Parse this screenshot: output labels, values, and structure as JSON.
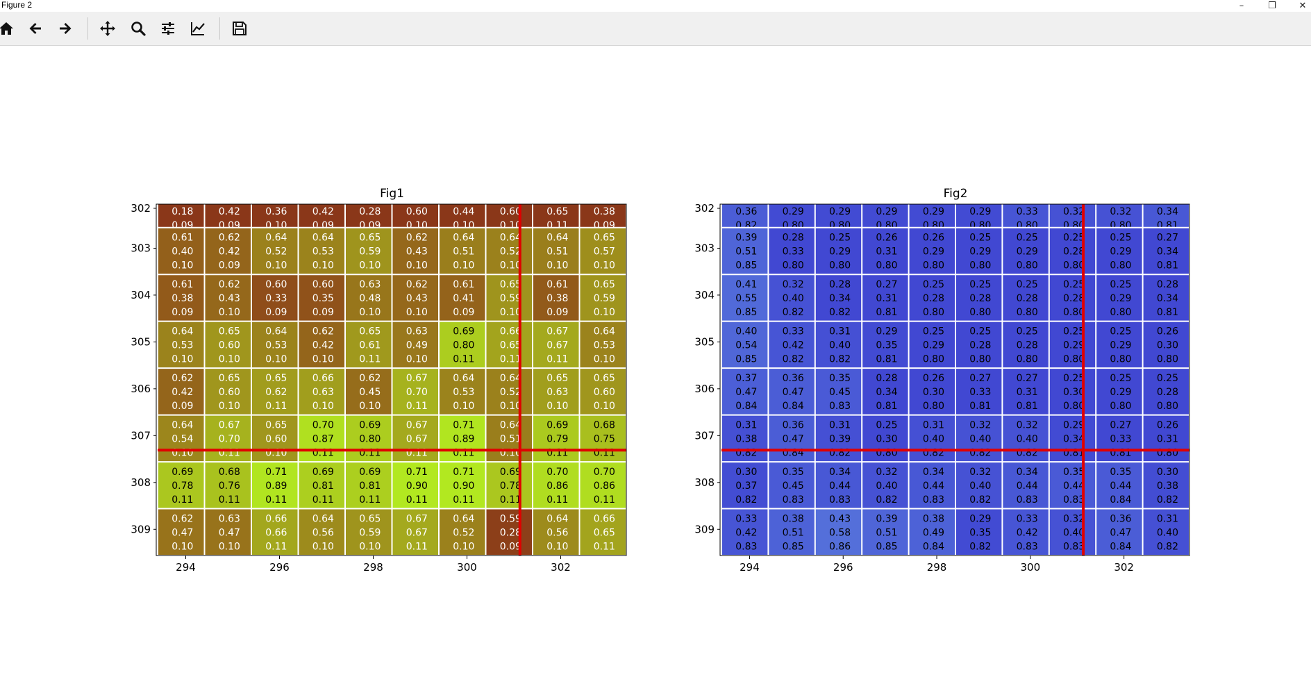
{
  "window": {
    "title": "Figure 2",
    "minimize": "–",
    "restore": "❐",
    "close": "✕"
  },
  "toolbar": {
    "tools": [
      "home-icon",
      "back-arrow-icon",
      "forward-arrow-icon",
      "pan-icon",
      "zoom-icon",
      "configure-subplots-icon",
      "edit-axis-icon",
      "save-icon"
    ]
  },
  "colors": {
    "gridline": "#ffffff",
    "crosshair": "#e00000"
  },
  "chart_data": [
    {
      "type": "heatmap",
      "title": "Fig1",
      "xlabel": "",
      "ylabel": "",
      "xticks": [
        "294",
        "296",
        "298",
        "300",
        "302"
      ],
      "yticks": [
        "302",
        "303",
        "304",
        "305",
        "306",
        "307",
        "308",
        "309"
      ],
      "crosshair": {
        "x": 301.3,
        "y": 307.25
      },
      "cells": [
        [
          [
            "0.18",
            "0.09"
          ],
          [
            "0.42",
            "0.09"
          ],
          [
            "0.36",
            "0.10"
          ],
          [
            "0.42",
            "0.09"
          ],
          [
            "0.28",
            "0.09"
          ],
          [
            "0.60",
            "0.10"
          ],
          [
            "0.44",
            "0.10"
          ],
          [
            "0.60",
            "0.10"
          ],
          [
            "0.65",
            "0.11"
          ],
          [
            "0.38",
            "0.09"
          ]
        ],
        [
          [
            "0.61",
            "0.40",
            "0.10"
          ],
          [
            "0.62",
            "0.42",
            "0.09"
          ],
          [
            "0.64",
            "0.52",
            "0.10"
          ],
          [
            "0.64",
            "0.53",
            "0.10"
          ],
          [
            "0.65",
            "0.59",
            "0.10"
          ],
          [
            "0.62",
            "0.43",
            "0.10"
          ],
          [
            "0.64",
            "0.51",
            "0.10"
          ],
          [
            "0.64",
            "0.52",
            "0.10"
          ],
          [
            "0.64",
            "0.51",
            "0.10"
          ],
          [
            "0.65",
            "0.57",
            "0.10"
          ]
        ],
        [
          [
            "0.61",
            "0.38",
            "0.09"
          ],
          [
            "0.62",
            "0.43",
            "0.10"
          ],
          [
            "0.60",
            "0.33",
            "0.09"
          ],
          [
            "0.60",
            "0.35",
            "0.09"
          ],
          [
            "0.63",
            "0.48",
            "0.10"
          ],
          [
            "0.62",
            "0.43",
            "0.10"
          ],
          [
            "0.61",
            "0.41",
            "0.09"
          ],
          [
            "0.65",
            "0.59",
            "0.10"
          ],
          [
            "0.61",
            "0.38",
            "0.09"
          ],
          [
            "0.65",
            "0.59",
            "0.10"
          ]
        ],
        [
          [
            "0.64",
            "0.53",
            "0.10"
          ],
          [
            "0.65",
            "0.60",
            "0.10"
          ],
          [
            "0.64",
            "0.53",
            "0.10"
          ],
          [
            "0.62",
            "0.42",
            "0.10"
          ],
          [
            "0.65",
            "0.61",
            "0.11"
          ],
          [
            "0.63",
            "0.49",
            "0.10"
          ],
          [
            "0.69",
            "0.80",
            "0.11"
          ],
          [
            "0.66",
            "0.65",
            "0.11"
          ],
          [
            "0.67",
            "0.67",
            "0.11"
          ],
          [
            "0.64",
            "0.53",
            "0.10"
          ]
        ],
        [
          [
            "0.62",
            "0.42",
            "0.09"
          ],
          [
            "0.65",
            "0.60",
            "0.10"
          ],
          [
            "0.65",
            "0.62",
            "0.11"
          ],
          [
            "0.66",
            "0.63",
            "0.10"
          ],
          [
            "0.62",
            "0.45",
            "0.10"
          ],
          [
            "0.67",
            "0.70",
            "0.11"
          ],
          [
            "0.64",
            "0.53",
            "0.10"
          ],
          [
            "0.64",
            "0.52",
            "0.10"
          ],
          [
            "0.65",
            "0.63",
            "0.10"
          ],
          [
            "0.65",
            "0.60",
            "0.10"
          ]
        ],
        [
          [
            "0.64",
            "0.54",
            "0.10"
          ],
          [
            "0.67",
            "0.70",
            "0.11"
          ],
          [
            "0.65",
            "0.60",
            "0.10"
          ],
          [
            "0.70",
            "0.87",
            "0.11"
          ],
          [
            "0.69",
            "0.80",
            "0.11"
          ],
          [
            "0.67",
            "0.67",
            "0.11"
          ],
          [
            "0.71",
            "0.89",
            "0.11"
          ],
          [
            "0.64",
            "0.51",
            "0.10"
          ],
          [
            "0.69",
            "0.79",
            "0.11"
          ],
          [
            "0.68",
            "0.75",
            "0.11"
          ]
        ],
        [
          [
            "0.69",
            "0.78",
            "0.11"
          ],
          [
            "0.68",
            "0.76",
            "0.11"
          ],
          [
            "0.71",
            "0.89",
            "0.11"
          ],
          [
            "0.69",
            "0.81",
            "0.11"
          ],
          [
            "0.69",
            "0.81",
            "0.11"
          ],
          [
            "0.71",
            "0.90",
            "0.11"
          ],
          [
            "0.71",
            "0.90",
            "0.11"
          ],
          [
            "0.69",
            "0.78",
            "0.11"
          ],
          [
            "0.70",
            "0.86",
            "0.11"
          ],
          [
            "0.70",
            "0.86",
            "0.11"
          ]
        ],
        [
          [
            "0.62",
            "0.47",
            "0.10"
          ],
          [
            "0.63",
            "0.47",
            "0.10"
          ],
          [
            "0.66",
            "0.66",
            "0.11"
          ],
          [
            "0.64",
            "0.56",
            "0.10"
          ],
          [
            "0.65",
            "0.59",
            "0.10"
          ],
          [
            "0.67",
            "0.67",
            "0.11"
          ],
          [
            "0.64",
            "0.52",
            "0.10"
          ],
          [
            "0.59",
            "0.28",
            "0.09"
          ],
          [
            "0.64",
            "0.56",
            "0.10"
          ],
          [
            "0.66",
            "0.65",
            "0.11"
          ]
        ]
      ]
    },
    {
      "type": "heatmap",
      "title": "Fig2",
      "xlabel": "",
      "ylabel": "",
      "xticks": [
        "294",
        "296",
        "298",
        "300",
        "302"
      ],
      "yticks": [
        "302",
        "303",
        "304",
        "305",
        "306",
        "307",
        "308",
        "309"
      ],
      "crosshair": {
        "x": 301.3,
        "y": 307.25
      },
      "cells": [
        [
          [
            "0.36",
            "0.82"
          ],
          [
            "0.29",
            "0.80"
          ],
          [
            "0.29",
            "0.80"
          ],
          [
            "0.29",
            "0.80"
          ],
          [
            "0.29",
            "0.80"
          ],
          [
            "0.29",
            "0.80"
          ],
          [
            "0.33",
            "0.80"
          ],
          [
            "0.32",
            "0.80"
          ],
          [
            "0.32",
            "0.80"
          ],
          [
            "0.34",
            "0.81"
          ]
        ],
        [
          [
            "0.39",
            "0.51",
            "0.85"
          ],
          [
            "0.28",
            "0.33",
            "0.80"
          ],
          [
            "0.25",
            "0.29",
            "0.80"
          ],
          [
            "0.26",
            "0.31",
            "0.80"
          ],
          [
            "0.26",
            "0.29",
            "0.80"
          ],
          [
            "0.25",
            "0.29",
            "0.80"
          ],
          [
            "0.25",
            "0.29",
            "0.80"
          ],
          [
            "0.25",
            "0.28",
            "0.80"
          ],
          [
            "0.25",
            "0.29",
            "0.80"
          ],
          [
            "0.27",
            "0.34",
            "0.81"
          ]
        ],
        [
          [
            "0.41",
            "0.55",
            "0.85"
          ],
          [
            "0.32",
            "0.40",
            "0.82"
          ],
          [
            "0.28",
            "0.34",
            "0.82"
          ],
          [
            "0.27",
            "0.31",
            "0.81"
          ],
          [
            "0.25",
            "0.28",
            "0.80"
          ],
          [
            "0.25",
            "0.28",
            "0.80"
          ],
          [
            "0.25",
            "0.28",
            "0.80"
          ],
          [
            "0.25",
            "0.28",
            "0.80"
          ],
          [
            "0.25",
            "0.29",
            "0.80"
          ],
          [
            "0.28",
            "0.34",
            "0.81"
          ]
        ],
        [
          [
            "0.40",
            "0.54",
            "0.85"
          ],
          [
            "0.33",
            "0.42",
            "0.82"
          ],
          [
            "0.31",
            "0.40",
            "0.82"
          ],
          [
            "0.29",
            "0.35",
            "0.81"
          ],
          [
            "0.25",
            "0.29",
            "0.80"
          ],
          [
            "0.25",
            "0.28",
            "0.80"
          ],
          [
            "0.25",
            "0.28",
            "0.80"
          ],
          [
            "0.25",
            "0.29",
            "0.80"
          ],
          [
            "0.25",
            "0.29",
            "0.80"
          ],
          [
            "0.26",
            "0.30",
            "0.80"
          ]
        ],
        [
          [
            "0.37",
            "0.47",
            "0.84"
          ],
          [
            "0.36",
            "0.47",
            "0.84"
          ],
          [
            "0.35",
            "0.45",
            "0.83"
          ],
          [
            "0.28",
            "0.34",
            "0.81"
          ],
          [
            "0.26",
            "0.30",
            "0.80"
          ],
          [
            "0.27",
            "0.33",
            "0.81"
          ],
          [
            "0.27",
            "0.31",
            "0.81"
          ],
          [
            "0.25",
            "0.30",
            "0.80"
          ],
          [
            "0.25",
            "0.29",
            "0.80"
          ],
          [
            "0.25",
            "0.28",
            "0.80"
          ]
        ],
        [
          [
            "0.31",
            "0.38",
            "0.82"
          ],
          [
            "0.36",
            "0.47",
            "0.84"
          ],
          [
            "0.31",
            "0.39",
            "0.82"
          ],
          [
            "0.25",
            "0.30",
            "0.80"
          ],
          [
            "0.31",
            "0.40",
            "0.82"
          ],
          [
            "0.32",
            "0.40",
            "0.82"
          ],
          [
            "0.32",
            "0.40",
            "0.82"
          ],
          [
            "0.29",
            "0.34",
            "0.81"
          ],
          [
            "0.27",
            "0.33",
            "0.81"
          ],
          [
            "0.26",
            "0.31",
            "0.80"
          ]
        ],
        [
          [
            "0.30",
            "0.37",
            "0.82"
          ],
          [
            "0.35",
            "0.45",
            "0.83"
          ],
          [
            "0.34",
            "0.44",
            "0.83"
          ],
          [
            "0.32",
            "0.40",
            "0.82"
          ],
          [
            "0.34",
            "0.44",
            "0.83"
          ],
          [
            "0.32",
            "0.40",
            "0.82"
          ],
          [
            "0.34",
            "0.44",
            "0.83"
          ],
          [
            "0.35",
            "0.44",
            "0.83"
          ],
          [
            "0.35",
            "0.44",
            "0.84"
          ],
          [
            "0.30",
            "0.38",
            "0.82"
          ]
        ],
        [
          [
            "0.33",
            "0.42",
            "0.83"
          ],
          [
            "0.38",
            "0.51",
            "0.85"
          ],
          [
            "0.43",
            "0.58",
            "0.86"
          ],
          [
            "0.39",
            "0.51",
            "0.85"
          ],
          [
            "0.38",
            "0.49",
            "0.84"
          ],
          [
            "0.29",
            "0.35",
            "0.82"
          ],
          [
            "0.33",
            "0.42",
            "0.83"
          ],
          [
            "0.32",
            "0.40",
            "0.83"
          ],
          [
            "0.36",
            "0.47",
            "0.84"
          ],
          [
            "0.31",
            "0.40",
            "0.82"
          ]
        ]
      ]
    }
  ]
}
